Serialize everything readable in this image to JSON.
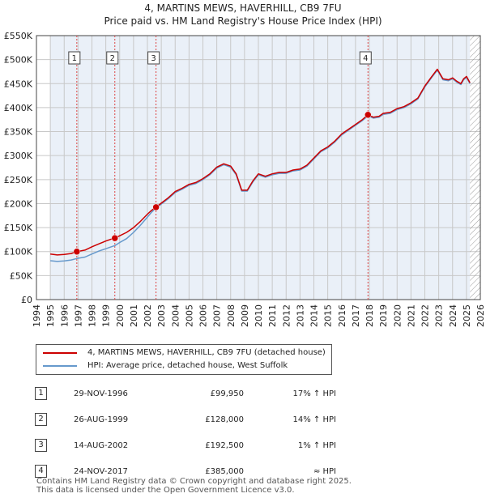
{
  "title_line1": "4, MARTINS MEWS, HAVERHILL, CB9 7FU",
  "title_line2": "Price paid vs. HM Land Registry's House Price Index (HPI)",
  "chart_data": {
    "type": "line",
    "title": "4, MARTINS MEWS, HAVERHILL, CB9 7FU — Price paid vs. HM Land Registry's House Price Index (HPI)",
    "xlabel": "",
    "ylabel": "",
    "xlim": [
      1994,
      2026
    ],
    "ylim": [
      0,
      550000
    ],
    "grid": true,
    "x_ticks": [
      1994,
      1995,
      1996,
      1997,
      1998,
      1999,
      2000,
      2001,
      2002,
      2003,
      2004,
      2005,
      2006,
      2007,
      2008,
      2009,
      2010,
      2011,
      2012,
      2013,
      2014,
      2015,
      2016,
      2017,
      2018,
      2019,
      2020,
      2021,
      2022,
      2023,
      2024,
      2025,
      2026
    ],
    "y_ticks": [
      0,
      50000,
      100000,
      150000,
      200000,
      250000,
      300000,
      350000,
      400000,
      450000,
      500000,
      550000
    ],
    "y_tick_labels": [
      "£0",
      "£50K",
      "£100K",
      "£150K",
      "£200K",
      "£250K",
      "£300K",
      "£350K",
      "£400K",
      "£450K",
      "£500K",
      "£550K"
    ],
    "data_extent_start": 1995.0,
    "data_extent_end": 2025.25,
    "series": [
      {
        "name": "4, MARTINS MEWS, HAVERHILL, CB9 7FU (detached house)",
        "color": "#cc0000",
        "x": [
          1995.0,
          1995.5,
          1996.0,
          1996.5,
          1996.91,
          1997.5,
          1998.0,
          1998.5,
          1999.0,
          1999.5,
          1999.65,
          2000.0,
          2000.5,
          2001.0,
          2001.5,
          2002.0,
          2002.3,
          2002.62,
          2003.0,
          2003.5,
          2004.0,
          2004.5,
          2005.0,
          2005.5,
          2006.0,
          2006.5,
          2007.0,
          2007.5,
          2008.0,
          2008.4,
          2008.8,
          2009.2,
          2009.6,
          2010.0,
          2010.5,
          2011.0,
          2011.5,
          2012.0,
          2012.5,
          2013.0,
          2013.5,
          2014.0,
          2014.5,
          2015.0,
          2015.5,
          2016.0,
          2016.5,
          2017.0,
          2017.5,
          2017.9,
          2018.3,
          2018.7,
          2019.0,
          2019.5,
          2020.0,
          2020.5,
          2021.0,
          2021.5,
          2022.0,
          2022.5,
          2022.9,
          2023.3,
          2023.7,
          2024.0,
          2024.3,
          2024.6,
          2024.8,
          2025.0,
          2025.25
        ],
        "y": [
          95000,
          93000,
          94000,
          96000,
          99950,
          103000,
          110000,
          116000,
          122000,
          127000,
          128000,
          133000,
          140000,
          150000,
          163000,
          178000,
          186000,
          192500,
          201000,
          212000,
          225000,
          232000,
          240000,
          244000,
          252000,
          262000,
          276000,
          283000,
          278000,
          262000,
          228000,
          228000,
          247000,
          262000,
          257000,
          262000,
          265000,
          265000,
          270000,
          272000,
          280000,
          295000,
          310000,
          318000,
          330000,
          345000,
          355000,
          365000,
          375000,
          385000,
          380000,
          382000,
          388000,
          390000,
          398000,
          402000,
          410000,
          420000,
          445000,
          465000,
          480000,
          460000,
          458000,
          462000,
          455000,
          450000,
          460000,
          465000,
          452000
        ]
      },
      {
        "name": "HPI: Average price, detached house, West Suffolk",
        "color": "#6699cc",
        "x": [
          1995.0,
          1995.5,
          1996.0,
          1996.5,
          1996.91,
          1997.5,
          1998.0,
          1998.5,
          1999.0,
          1999.5,
          1999.65,
          2000.0,
          2000.5,
          2001.0,
          2001.5,
          2002.0,
          2002.3,
          2002.62,
          2003.0,
          2003.5,
          2004.0,
          2004.5,
          2005.0,
          2005.5,
          2006.0,
          2006.5,
          2007.0,
          2007.5,
          2008.0,
          2008.4,
          2008.8,
          2009.2,
          2009.6,
          2010.0,
          2010.5,
          2011.0,
          2011.5,
          2012.0,
          2012.5,
          2013.0,
          2013.5,
          2014.0,
          2014.5,
          2015.0,
          2015.5,
          2016.0,
          2016.5,
          2017.0,
          2017.5,
          2017.9,
          2018.3,
          2018.7,
          2019.0,
          2019.5,
          2020.0,
          2020.5,
          2021.0,
          2021.5,
          2022.0,
          2022.5,
          2022.9,
          2023.3,
          2023.7,
          2024.0,
          2024.3,
          2024.6,
          2024.8,
          2025.0,
          2025.25
        ],
        "y": [
          81000,
          79500,
          80500,
          82500,
          85500,
          88500,
          95000,
          101000,
          106000,
          111000,
          112300,
          119000,
          127000,
          140000,
          155000,
          172000,
          182000,
          190500,
          199000,
          210000,
          223000,
          230000,
          238000,
          242000,
          250000,
          260000,
          274000,
          281000,
          276000,
          260000,
          226000,
          226000,
          245000,
          260000,
          255000,
          260000,
          263000,
          263000,
          268000,
          270000,
          278000,
          293000,
          308000,
          316000,
          328000,
          343000,
          353000,
          363000,
          373000,
          383000,
          378000,
          380000,
          386000,
          388000,
          396000,
          400000,
          408000,
          418000,
          443000,
          463000,
          478000,
          458000,
          456000,
          460000,
          453000,
          448000,
          458000,
          463000,
          450000
        ]
      }
    ],
    "annotations": [
      {
        "label": "1",
        "x": 1996.91,
        "y": 99950
      },
      {
        "label": "2",
        "x": 1999.65,
        "y": 128000
      },
      {
        "label": "3",
        "x": 2002.62,
        "y": 192500
      },
      {
        "label": "4",
        "x": 2017.9,
        "y": 385000
      }
    ]
  },
  "legend": {
    "items": [
      {
        "label": "4, MARTINS MEWS, HAVERHILL, CB9 7FU (detached house)",
        "color": "#cc0000"
      },
      {
        "label": "HPI: Average price, detached house, West Suffolk",
        "color": "#6699cc"
      }
    ]
  },
  "sales": [
    {
      "num": "1",
      "date": "29-NOV-1996",
      "price": "£99,950",
      "relation": "17% ↑ HPI"
    },
    {
      "num": "2",
      "date": "26-AUG-1999",
      "price": "£128,000",
      "relation": "14% ↑ HPI"
    },
    {
      "num": "3",
      "date": "14-AUG-2002",
      "price": "£192,500",
      "relation": "1% ↑ HPI"
    },
    {
      "num": "4",
      "date": "24-NOV-2017",
      "price": "£385,000",
      "relation": "≈ HPI"
    }
  ],
  "footer": {
    "line1": "Contains HM Land Registry data © Crown copyright and database right 2025.",
    "line2": "This data is licensed under the Open Government Licence v3.0."
  }
}
